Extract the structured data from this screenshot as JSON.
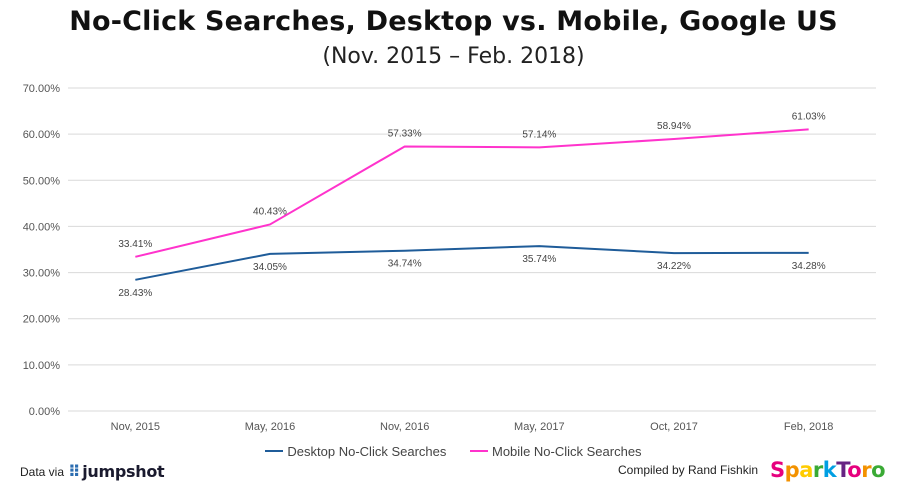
{
  "header": {
    "title": "No-Click Searches, Desktop vs. Mobile, Google US",
    "subtitle": "(Nov. 2015 – Feb. 2018)"
  },
  "chart_data": {
    "type": "line",
    "categories": [
      "Nov, 2015",
      "May, 2016",
      "Nov, 2016",
      "May, 2017",
      "Oct, 2017",
      "Feb, 2018"
    ],
    "series": [
      {
        "name": "Desktop No-Click Searches",
        "values": [
          28.43,
          34.05,
          34.74,
          35.74,
          34.22,
          34.28
        ],
        "labels": [
          "28.43%",
          "34.05%",
          "34.74%",
          "35.74%",
          "34.22%",
          "34.28%"
        ],
        "color": "#1f5c99"
      },
      {
        "name": "Mobile No-Click Searches",
        "values": [
          33.41,
          40.43,
          57.33,
          57.14,
          58.94,
          61.03
        ],
        "labels": [
          "33.41%",
          "40.43%",
          "57.33%",
          "57.14%",
          "58.94%",
          "61.03%"
        ],
        "color": "#ff33cc"
      }
    ],
    "ylim": [
      0,
      70
    ],
    "yticks": [
      0,
      10,
      20,
      30,
      40,
      50,
      60,
      70
    ],
    "ytick_labels": [
      "0.00%",
      "10.00%",
      "20.00%",
      "30.00%",
      "40.00%",
      "50.00%",
      "60.00%",
      "70.00%"
    ],
    "grid": true,
    "legend_position": "bottom"
  },
  "footer": {
    "data_via": "Data via",
    "jumpshot": "jumpshot",
    "compiled_by": "Compiled by Rand Fishkin",
    "sparktoro": "SparkToro",
    "sparktoro_colors": [
      "#e6007e",
      "#f39200",
      "#ffcc00",
      "#3aaa35",
      "#009fe3",
      "#662483",
      "#e6007e",
      "#f39200",
      "#3aaa35"
    ]
  }
}
